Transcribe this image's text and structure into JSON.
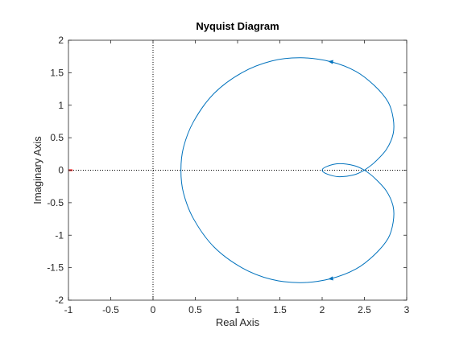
{
  "chart_data": {
    "type": "line",
    "title": "Nyquist Diagram",
    "xlabel": "Real Axis",
    "ylabel": "Imaginary Axis",
    "xlim": [
      -1,
      3
    ],
    "ylim": [
      -2,
      2
    ],
    "xticks": [
      -1,
      -0.5,
      0,
      0.5,
      1,
      1.5,
      2,
      2.5,
      3
    ],
    "yticks": [
      -2,
      -1.5,
      -1,
      -0.5,
      0,
      0.5,
      1,
      1.5,
      2
    ],
    "xtick_labels": [
      "-1",
      "-0.5",
      "0",
      "0.5",
      "1",
      "1.5",
      "2",
      "2.5",
      "3"
    ],
    "ytick_labels": [
      "-2",
      "-1.5",
      "-1",
      "-0.5",
      "0",
      "0.5",
      "1",
      "1.5",
      "2"
    ],
    "grid": false,
    "critical_point": [
      -1,
      0
    ],
    "colors": {
      "curve": "#0072BD",
      "critical_point": "#ff0000",
      "axes": "#262626",
      "reference_lines": "#000000"
    },
    "series": [
      {
        "values": [
          [
            2.5,
            0.0
          ],
          [
            2.62,
            0.12
          ],
          [
            2.76,
            0.32
          ],
          [
            2.84,
            0.56
          ],
          [
            2.84,
            0.8
          ],
          [
            2.78,
            1.05
          ],
          [
            2.62,
            1.3
          ],
          [
            2.4,
            1.52
          ],
          [
            2.1,
            1.67
          ],
          [
            1.75,
            1.73
          ],
          [
            1.4,
            1.68
          ],
          [
            1.05,
            1.5
          ],
          [
            0.72,
            1.18
          ],
          [
            0.48,
            0.75
          ],
          [
            0.36,
            0.35
          ],
          [
            0.33,
            0.0
          ],
          [
            0.36,
            -0.35
          ],
          [
            0.48,
            -0.75
          ],
          [
            0.72,
            -1.18
          ],
          [
            1.05,
            -1.5
          ],
          [
            1.4,
            -1.68
          ],
          [
            1.75,
            -1.73
          ],
          [
            2.1,
            -1.67
          ],
          [
            2.4,
            -1.52
          ],
          [
            2.62,
            -1.3
          ],
          [
            2.78,
            -1.05
          ],
          [
            2.84,
            -0.8
          ],
          [
            2.84,
            -0.56
          ],
          [
            2.76,
            -0.32
          ],
          [
            2.62,
            -0.12
          ],
          [
            2.5,
            0.0
          ],
          [
            2.38,
            0.07
          ],
          [
            2.2,
            0.1
          ],
          [
            2.06,
            0.06
          ],
          [
            2.0,
            0.0
          ],
          [
            2.06,
            -0.06
          ],
          [
            2.2,
            -0.1
          ],
          [
            2.38,
            -0.07
          ],
          [
            2.5,
            0.0
          ]
        ],
        "arrows": [
          {
            "at": [
              2.1,
              1.67
            ],
            "towards": [
              2.0,
              1.69
            ]
          },
          {
            "at": [
              2.1,
              -1.67
            ],
            "towards": [
              2.0,
              -1.69
            ]
          }
        ]
      }
    ]
  }
}
